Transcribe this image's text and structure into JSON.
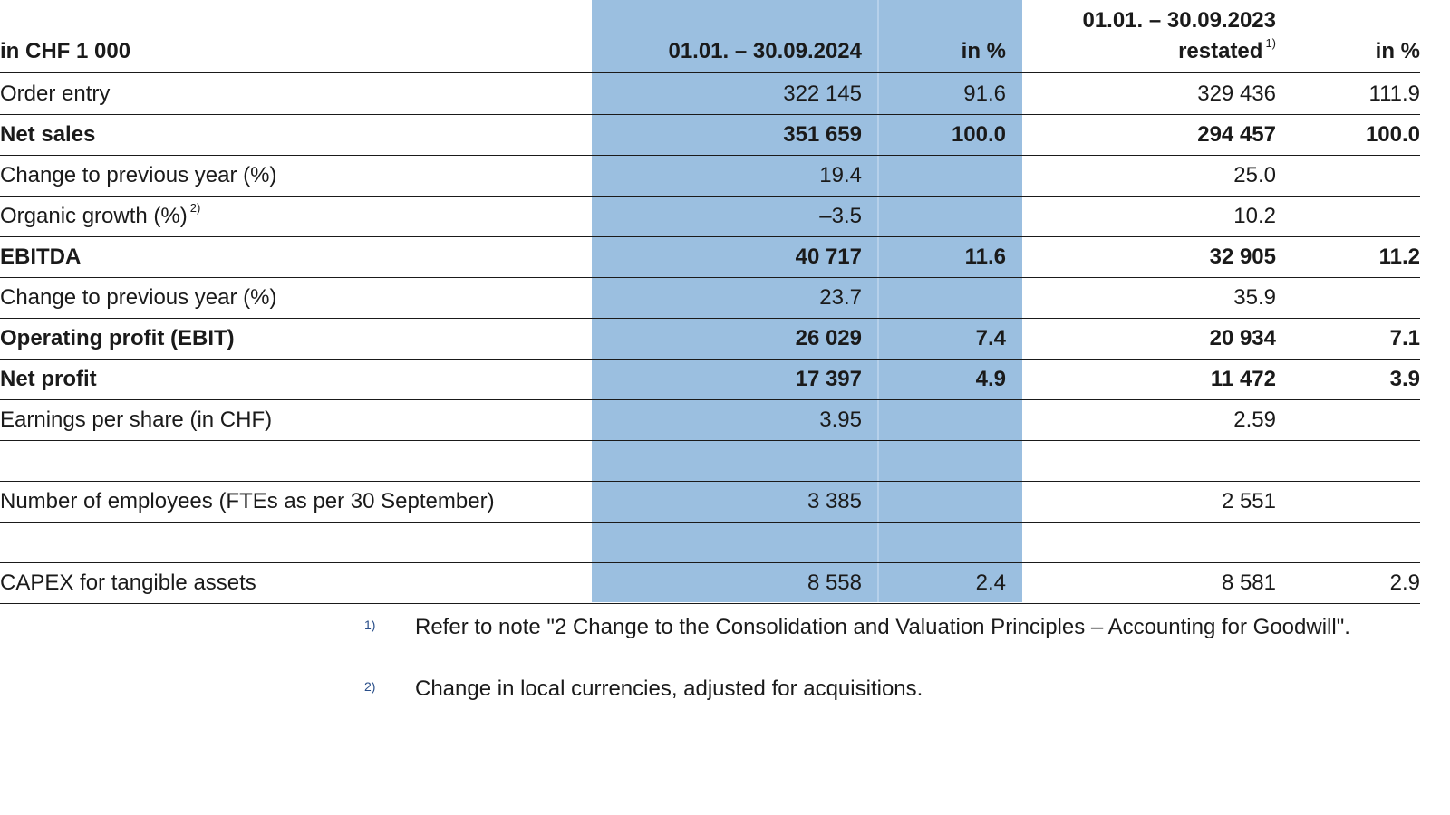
{
  "header": {
    "unit": "in CHF 1 000",
    "period_2024": "01.01. – 30.09.2024",
    "pct_2024": "in %",
    "period_2023_line1": "01.01. – 30.09.2023",
    "period_2023_line2": "restated",
    "period_2023_footnote": "1)",
    "pct_2023": "in %"
  },
  "rows": [
    {
      "label": "Order entry",
      "footnote": "",
      "v2024": "322 145",
      "p2024": "91.6",
      "v2023": "329 436",
      "p2023": "111.9",
      "bold": false
    },
    {
      "label": "Net sales",
      "footnote": "",
      "v2024": "351 659",
      "p2024": "100.0",
      "v2023": "294 457",
      "p2023": "100.0",
      "bold": true
    },
    {
      "label": "Change to previous year (%)",
      "footnote": "",
      "v2024": "19.4",
      "p2024": "",
      "v2023": "25.0",
      "p2023": "",
      "bold": false
    },
    {
      "label": "Organic growth (%)",
      "footnote": "2)",
      "v2024": "–3.5",
      "p2024": "",
      "v2023": "10.2",
      "p2023": "",
      "bold": false
    },
    {
      "label": "EBITDA",
      "footnote": "",
      "v2024": "40 717",
      "p2024": "11.6",
      "v2023": "32 905",
      "p2023": "11.2",
      "bold": true
    },
    {
      "label": "Change to previous year (%)",
      "footnote": "",
      "v2024": "23.7",
      "p2024": "",
      "v2023": "35.9",
      "p2023": "",
      "bold": false
    },
    {
      "label": "Operating profit (EBIT)",
      "footnote": "",
      "v2024": "26 029",
      "p2024": "7.4",
      "v2023": "20 934",
      "p2023": "7.1",
      "bold": true
    },
    {
      "label": "Net profit",
      "footnote": "",
      "v2024": "17 397",
      "p2024": "4.9",
      "v2023": "11 472",
      "p2023": "3.9",
      "bold": true
    },
    {
      "label": "Earnings per share (in CHF)",
      "footnote": "",
      "v2024": "3.95",
      "p2024": "",
      "v2023": "2.59",
      "p2023": "",
      "bold": false
    },
    {
      "label": "",
      "footnote": "",
      "v2024": "",
      "p2024": "",
      "v2023": "",
      "p2023": "",
      "bold": false
    },
    {
      "label": "Number of employees (FTEs as per 30 September)",
      "footnote": "",
      "v2024": "3 385",
      "p2024": "",
      "v2023": "2 551",
      "p2023": "",
      "bold": false
    },
    {
      "label": "",
      "footnote": "",
      "v2024": "",
      "p2024": "",
      "v2023": "",
      "p2023": "",
      "bold": false
    },
    {
      "label": "CAPEX for tangible assets",
      "footnote": "",
      "v2024": "8 558",
      "p2024": "2.4",
      "v2023": "8 581",
      "p2023": "2.9",
      "bold": false
    }
  ],
  "footnotes": [
    {
      "mark": "1)",
      "text": "Refer to note \"2 Change to the Consolidation and Valuation Principles – Accounting for Goodwill\"."
    },
    {
      "mark": "2)",
      "text": "Change in local currencies, adjusted for acquisitions."
    }
  ]
}
